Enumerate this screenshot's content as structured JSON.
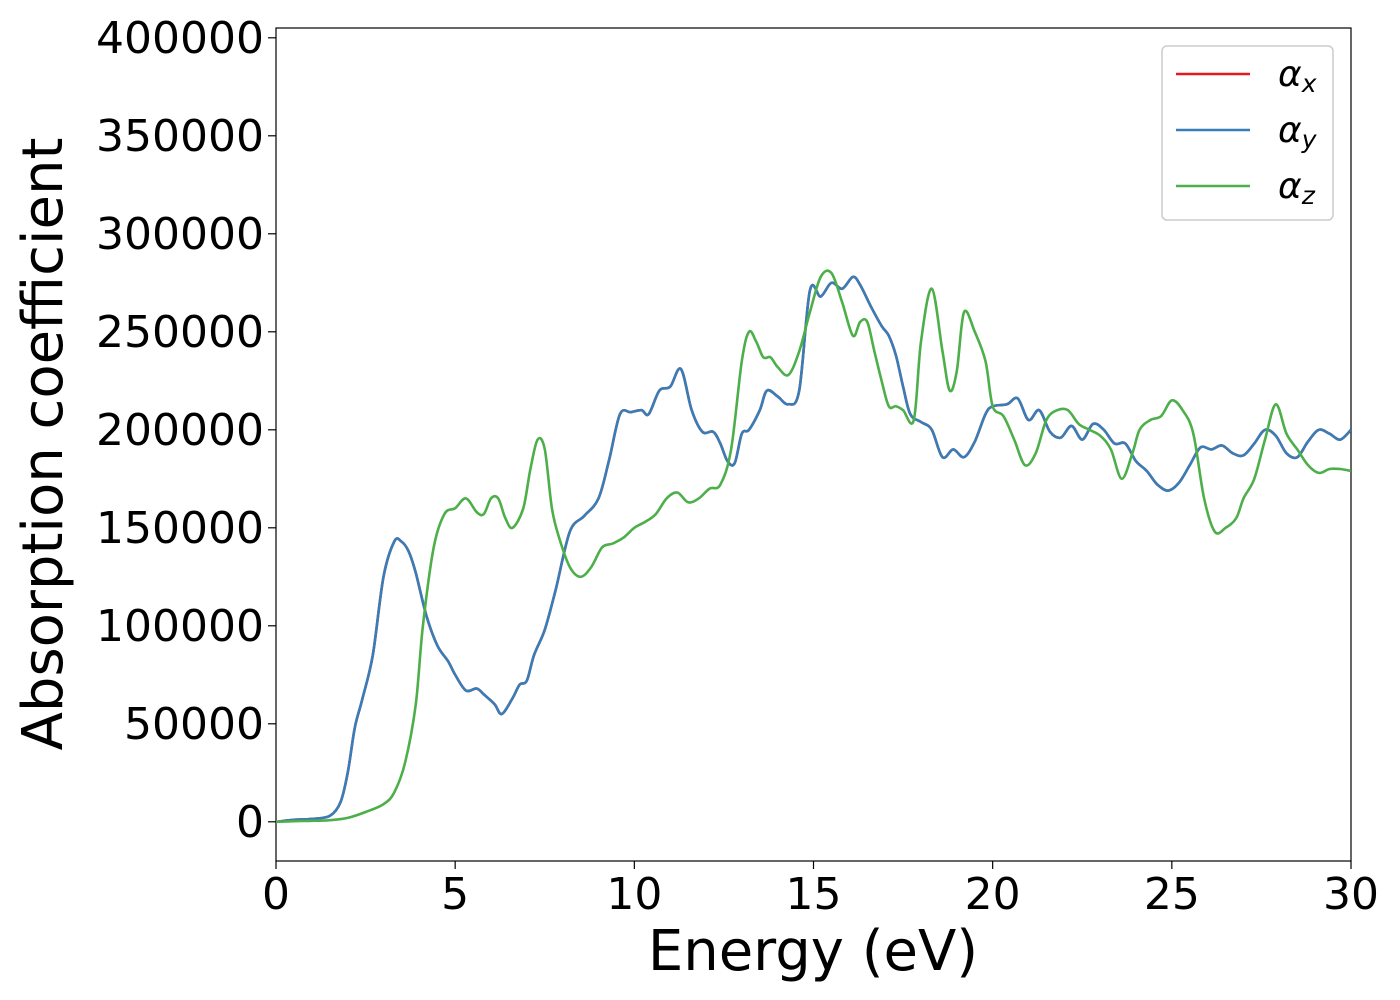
{
  "chart_data": {
    "type": "line",
    "title": "",
    "xlabel": "Energy (eV)",
    "ylabel": "Absorption coefficient",
    "xlim": [
      0,
      30
    ],
    "ylim": [
      -20000,
      405000
    ],
    "xticks": [
      0,
      5,
      10,
      15,
      20,
      25,
      30
    ],
    "yticks": [
      0,
      50000,
      100000,
      150000,
      200000,
      250000,
      300000,
      350000,
      400000
    ],
    "grid": false,
    "legend_position": "top-right",
    "series": [
      {
        "name": "αx",
        "symbol": "α",
        "subscript": "x",
        "color": "#e41a1c",
        "x": [
          0,
          0.5,
          1,
          1.5,
          1.8,
          2.0,
          2.2,
          2.4,
          2.7,
          3.0,
          3.3,
          3.5,
          3.7,
          3.9,
          4.2,
          4.5,
          4.8,
          5.0,
          5.3,
          5.6,
          5.8,
          6.1,
          6.3,
          6.6,
          6.8,
          7.0,
          7.2,
          7.5,
          7.8,
          8.2,
          8.6,
          9.0,
          9.3,
          9.6,
          9.9,
          10.2,
          10.4,
          10.7,
          11.0,
          11.3,
          11.6,
          11.9,
          12.2,
          12.4,
          12.6,
          12.8,
          13.0,
          13.2,
          13.5,
          13.7,
          14.0,
          14.3,
          14.6,
          14.9,
          15.2,
          15.5,
          15.8,
          16.1,
          16.3,
          16.6,
          16.9,
          17.1,
          17.3,
          17.5,
          17.7,
          18.0,
          18.3,
          18.6,
          18.9,
          19.2,
          19.5,
          19.8,
          20.0,
          20.4,
          20.7,
          21.0,
          21.3,
          21.6,
          21.9,
          22.2,
          22.5,
          22.8,
          23.1,
          23.4,
          23.7,
          24.0,
          24.3,
          24.6,
          24.9,
          25.2,
          25.5,
          25.8,
          26.1,
          26.4,
          26.7,
          27.0,
          27.3,
          27.6,
          27.9,
          28.2,
          28.5,
          28.8,
          29.1,
          29.4,
          29.7,
          30.0
        ],
        "y": [
          0,
          1000,
          1500,
          3000,
          10000,
          25000,
          48000,
          62000,
          85000,
          125000,
          143000,
          143000,
          138000,
          127000,
          105000,
          90000,
          82000,
          75000,
          67000,
          68000,
          65000,
          60000,
          55000,
          63000,
          70000,
          72000,
          85000,
          98000,
          118000,
          148000,
          156000,
          165000,
          185000,
          208000,
          209000,
          210000,
          208000,
          220000,
          222000,
          231000,
          210000,
          199000,
          199000,
          193000,
          184000,
          183000,
          198000,
          200000,
          210000,
          220000,
          217000,
          213000,
          220000,
          271000,
          268000,
          275000,
          272000,
          278000,
          274000,
          263000,
          253000,
          248000,
          238000,
          222000,
          208000,
          204000,
          200000,
          186000,
          190000,
          186000,
          194000,
          208000,
          212000,
          213000,
          216000,
          205000,
          210000,
          199000,
          196000,
          202000,
          195000,
          203000,
          200000,
          193000,
          193000,
          184000,
          179000,
          172000,
          169000,
          173000,
          182000,
          191000,
          190000,
          192000,
          188000,
          187000,
          193000,
          200000,
          197000,
          188000,
          186000,
          194000,
          200000,
          198000,
          195000,
          200000
        ]
      },
      {
        "name": "αy",
        "symbol": "α",
        "subscript": "y",
        "color": "#377eb8",
        "x": [
          0,
          0.5,
          1,
          1.5,
          1.8,
          2.0,
          2.2,
          2.4,
          2.7,
          3.0,
          3.3,
          3.5,
          3.7,
          3.9,
          4.2,
          4.5,
          4.8,
          5.0,
          5.3,
          5.6,
          5.8,
          6.1,
          6.3,
          6.6,
          6.8,
          7.0,
          7.2,
          7.5,
          7.8,
          8.2,
          8.6,
          9.0,
          9.3,
          9.6,
          9.9,
          10.2,
          10.4,
          10.7,
          11.0,
          11.3,
          11.6,
          11.9,
          12.2,
          12.4,
          12.6,
          12.8,
          13.0,
          13.2,
          13.5,
          13.7,
          14.0,
          14.3,
          14.6,
          14.9,
          15.2,
          15.5,
          15.8,
          16.1,
          16.3,
          16.6,
          16.9,
          17.1,
          17.3,
          17.5,
          17.7,
          18.0,
          18.3,
          18.6,
          18.9,
          19.2,
          19.5,
          19.8,
          20.0,
          20.4,
          20.7,
          21.0,
          21.3,
          21.6,
          21.9,
          22.2,
          22.5,
          22.8,
          23.1,
          23.4,
          23.7,
          24.0,
          24.3,
          24.6,
          24.9,
          25.2,
          25.5,
          25.8,
          26.1,
          26.4,
          26.7,
          27.0,
          27.3,
          27.6,
          27.9,
          28.2,
          28.5,
          28.8,
          29.1,
          29.4,
          29.7,
          30.0
        ],
        "y": [
          0,
          1000,
          1500,
          3000,
          10000,
          25000,
          48000,
          62000,
          85000,
          125000,
          143000,
          143000,
          138000,
          127000,
          105000,
          90000,
          82000,
          75000,
          67000,
          68000,
          65000,
          60000,
          55000,
          63000,
          70000,
          72000,
          85000,
          98000,
          118000,
          148000,
          156000,
          165000,
          185000,
          208000,
          209000,
          210000,
          208000,
          220000,
          222000,
          231000,
          210000,
          199000,
          199000,
          193000,
          184000,
          183000,
          198000,
          200000,
          210000,
          220000,
          217000,
          213000,
          220000,
          271000,
          268000,
          275000,
          272000,
          278000,
          274000,
          263000,
          253000,
          248000,
          238000,
          222000,
          208000,
          204000,
          200000,
          186000,
          190000,
          186000,
          194000,
          208000,
          212000,
          213000,
          216000,
          205000,
          210000,
          199000,
          196000,
          202000,
          195000,
          203000,
          200000,
          193000,
          193000,
          184000,
          179000,
          172000,
          169000,
          173000,
          182000,
          191000,
          190000,
          192000,
          188000,
          187000,
          193000,
          200000,
          197000,
          188000,
          186000,
          194000,
          200000,
          198000,
          195000,
          200000
        ]
      },
      {
        "name": "αz",
        "symbol": "α",
        "subscript": "z",
        "color": "#4daf4a",
        "x": [
          0,
          0.5,
          1,
          1.5,
          2.0,
          2.5,
          3.0,
          3.3,
          3.6,
          3.9,
          4.1,
          4.4,
          4.7,
          5.0,
          5.3,
          5.6,
          5.8,
          6.0,
          6.2,
          6.4,
          6.6,
          6.9,
          7.1,
          7.3,
          7.5,
          7.7,
          7.9,
          8.2,
          8.5,
          8.8,
          9.1,
          9.4,
          9.7,
          10.0,
          10.3,
          10.6,
          10.9,
          11.2,
          11.5,
          11.8,
          12.1,
          12.4,
          12.7,
          13.0,
          13.2,
          13.4,
          13.6,
          13.8,
          14.0,
          14.3,
          14.6,
          14.9,
          15.2,
          15.5,
          15.8,
          16.1,
          16.3,
          16.5,
          16.7,
          16.9,
          17.1,
          17.3,
          17.5,
          17.8,
          18.0,
          18.3,
          18.6,
          18.8,
          19.0,
          19.2,
          19.5,
          19.8,
          20.0,
          20.3,
          20.6,
          20.9,
          21.2,
          21.5,
          21.8,
          22.1,
          22.4,
          22.7,
          23.0,
          23.3,
          23.6,
          23.9,
          24.1,
          24.4,
          24.7,
          25.0,
          25.3,
          25.6,
          25.9,
          26.2,
          26.5,
          26.8,
          27.0,
          27.3,
          27.6,
          27.9,
          28.2,
          28.5,
          28.8,
          29.1,
          29.4,
          29.7,
          30.0
        ],
        "y": [
          0,
          300,
          500,
          800,
          2000,
          5000,
          9000,
          15000,
          30000,
          60000,
          100000,
          140000,
          157000,
          160000,
          165000,
          158000,
          157000,
          165000,
          165000,
          155000,
          150000,
          160000,
          180000,
          195000,
          190000,
          160000,
          145000,
          130000,
          125000,
          130000,
          140000,
          142000,
          145000,
          150000,
          153000,
          157000,
          165000,
          168000,
          163000,
          165000,
          170000,
          172000,
          190000,
          235000,
          250000,
          245000,
          237000,
          237000,
          232000,
          228000,
          240000,
          260000,
          278000,
          280000,
          265000,
          248000,
          255000,
          255000,
          240000,
          225000,
          212000,
          212000,
          210000,
          205000,
          245000,
          272000,
          240000,
          220000,
          230000,
          260000,
          250000,
          235000,
          212000,
          207000,
          195000,
          182000,
          188000,
          205000,
          210000,
          210000,
          203000,
          200000,
          197000,
          190000,
          175000,
          188000,
          200000,
          205000,
          207000,
          215000,
          210000,
          198000,
          165000,
          148000,
          150000,
          155000,
          165000,
          175000,
          195000,
          213000,
          198000,
          190000,
          182000,
          178000,
          180000,
          180000,
          179000
        ]
      }
    ]
  }
}
